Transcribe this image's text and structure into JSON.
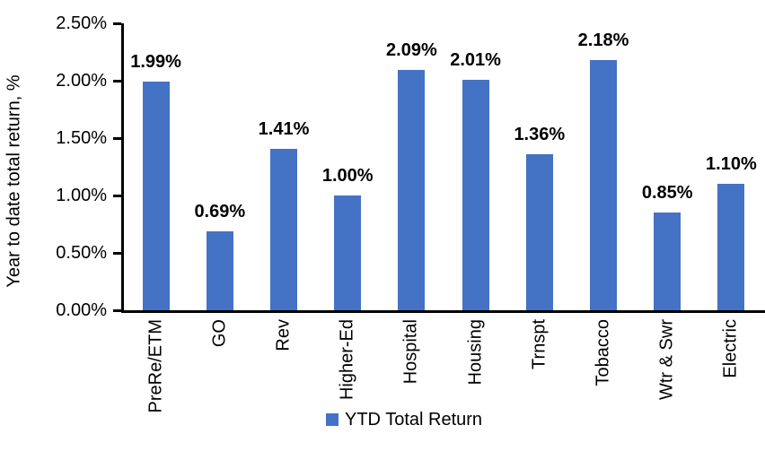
{
  "chart_data": {
    "type": "bar",
    "title": "",
    "xlabel": "",
    "ylabel": "Year to date total return, %",
    "categories": [
      "PreRe/ETM",
      "GO",
      "Rev",
      "Higher-Ed",
      "Hospital",
      "Housing",
      "Trnspt",
      "Tobacco",
      "Wtr & Swr",
      "Electric"
    ],
    "values": [
      1.99,
      0.69,
      1.41,
      1.0,
      2.09,
      2.01,
      1.36,
      2.18,
      0.85,
      1.1
    ],
    "value_labels": [
      "1.99%",
      "0.69%",
      "1.41%",
      "1.00%",
      "2.09%",
      "2.01%",
      "1.36%",
      "2.18%",
      "0.85%",
      "1.10%"
    ],
    "y_ticks": [
      "0.00%",
      "0.50%",
      "1.00%",
      "1.50%",
      "2.00%",
      "2.50%"
    ],
    "ylim": [
      0,
      2.5
    ],
    "grid": false,
    "legend": [
      "YTD Total Return"
    ],
    "legend_position": "bottom",
    "bar_color": "#4472C4",
    "axis_color": "#000000",
    "text_color": "#000000",
    "category_label_rotation_deg": -90
  }
}
